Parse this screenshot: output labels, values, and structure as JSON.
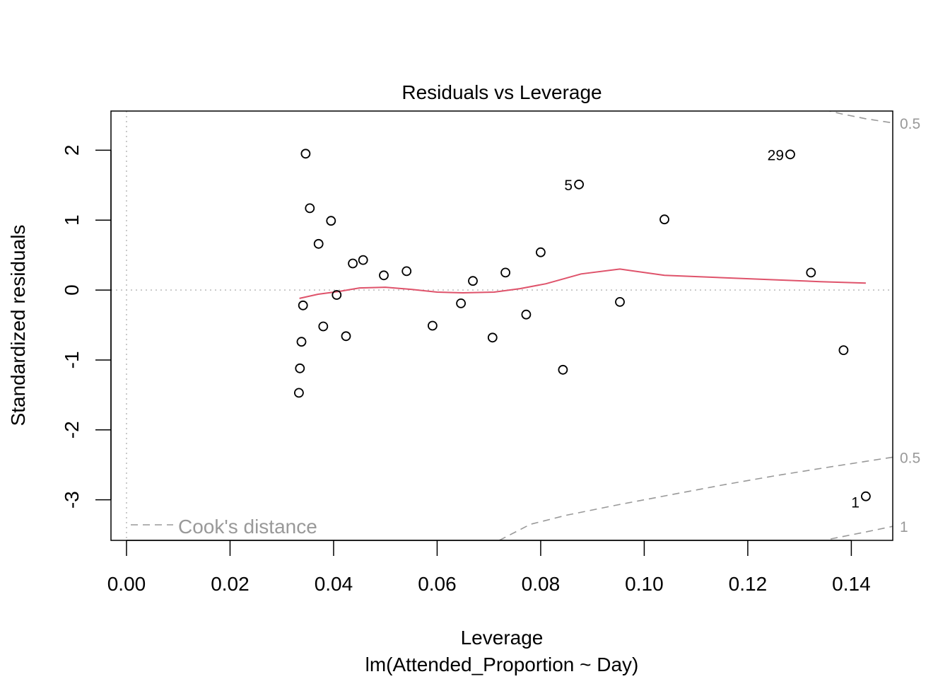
{
  "chart_data": {
    "type": "scatter",
    "title": "Residuals vs Leverage",
    "xlabel": "Leverage",
    "subtitle": "lm(Attended_Proportion ~ Day)",
    "ylabel": "Standardized residuals",
    "xlim": [
      -0.003,
      0.148
    ],
    "ylim": [
      -3.58,
      2.56
    ],
    "x_ticks": [
      {
        "value": 0.0,
        "label": "0.00"
      },
      {
        "value": 0.02,
        "label": "0.02"
      },
      {
        "value": 0.04,
        "label": "0.04"
      },
      {
        "value": 0.06,
        "label": "0.06"
      },
      {
        "value": 0.08,
        "label": "0.08"
      },
      {
        "value": 0.1,
        "label": "0.10"
      },
      {
        "value": 0.12,
        "label": "0.12"
      },
      {
        "value": 0.14,
        "label": "0.14"
      }
    ],
    "y_ticks": [
      {
        "value": 2,
        "label": "2"
      },
      {
        "value": 1,
        "label": "1"
      },
      {
        "value": 0,
        "label": "0"
      },
      {
        "value": -1,
        "label": "-1"
      },
      {
        "value": -2,
        "label": "-2"
      },
      {
        "value": -3,
        "label": "-3"
      }
    ],
    "points": [
      {
        "x": 0.0346,
        "y": 1.95
      },
      {
        "x": 0.0354,
        "y": 1.17
      },
      {
        "x": 0.0395,
        "y": 0.99
      },
      {
        "x": 0.0371,
        "y": 0.66
      },
      {
        "x": 0.0437,
        "y": 0.38
      },
      {
        "x": 0.0457,
        "y": 0.43
      },
      {
        "x": 0.0497,
        "y": 0.21
      },
      {
        "x": 0.0541,
        "y": 0.27
      },
      {
        "x": 0.0341,
        "y": -0.22
      },
      {
        "x": 0.0406,
        "y": -0.07
      },
      {
        "x": 0.038,
        "y": -0.52
      },
      {
        "x": 0.0424,
        "y": -0.66
      },
      {
        "x": 0.0338,
        "y": -0.74
      },
      {
        "x": 0.0335,
        "y": -1.12
      },
      {
        "x": 0.0333,
        "y": -1.47
      },
      {
        "x": 0.0591,
        "y": -0.51
      },
      {
        "x": 0.0646,
        "y": -0.19
      },
      {
        "x": 0.0669,
        "y": 0.13
      },
      {
        "x": 0.0707,
        "y": -0.68
      },
      {
        "x": 0.0732,
        "y": 0.25
      },
      {
        "x": 0.0772,
        "y": -0.35
      },
      {
        "x": 0.08,
        "y": 0.54
      },
      {
        "x": 0.0843,
        "y": -1.14
      },
      {
        "x": 0.0874,
        "y": 1.51,
        "label": "5"
      },
      {
        "x": 0.0953,
        "y": -0.17
      },
      {
        "x": 0.1039,
        "y": 1.01
      },
      {
        "x": 0.1282,
        "y": 1.94,
        "label": "29"
      },
      {
        "x": 0.1322,
        "y": 0.25
      },
      {
        "x": 0.1385,
        "y": -0.86
      },
      {
        "x": 0.1428,
        "y": -2.95,
        "label": "1"
      }
    ],
    "smooth_line": {
      "x": [
        0.0334,
        0.037,
        0.041,
        0.045,
        0.05,
        0.055,
        0.06,
        0.065,
        0.071,
        0.076,
        0.081,
        0.0878,
        0.0953,
        0.1039,
        0.114,
        0.124,
        0.134,
        0.1428
      ],
      "y": [
        -0.12,
        -0.06,
        -0.02,
        0.03,
        0.04,
        0.01,
        -0.03,
        -0.04,
        -0.03,
        0.02,
        0.09,
        0.23,
        0.3,
        0.21,
        0.18,
        0.15,
        0.12,
        0.1
      ],
      "color": "#DF536B"
    },
    "cooks_contours": [
      {
        "label": "0.5",
        "x": [
          0.1325,
          0.1381,
          0.1428,
          0.148
        ],
        "y": [
          2.62,
          2.52,
          2.45,
          2.39
        ]
      },
      {
        "label": "0.5",
        "x": [
          0.072,
          0.078,
          0.085,
          0.095,
          0.105,
          0.115,
          0.125,
          0.135,
          0.1428,
          0.148
        ],
        "y": [
          -3.58,
          -3.35,
          -3.22,
          -3.07,
          -2.93,
          -2.79,
          -2.66,
          -2.54,
          -2.45,
          -2.39
        ]
      },
      {
        "label": "1",
        "x": [
          0.136,
          0.1428,
          0.148
        ],
        "y": [
          -3.56,
          -3.46,
          -3.38
        ]
      }
    ],
    "legend": {
      "label": "Cook's distance",
      "position": "bottom-left"
    },
    "reference_lines": {
      "h0": true,
      "v0": true
    },
    "point_color": "#000000",
    "contour_color": "#999999"
  }
}
